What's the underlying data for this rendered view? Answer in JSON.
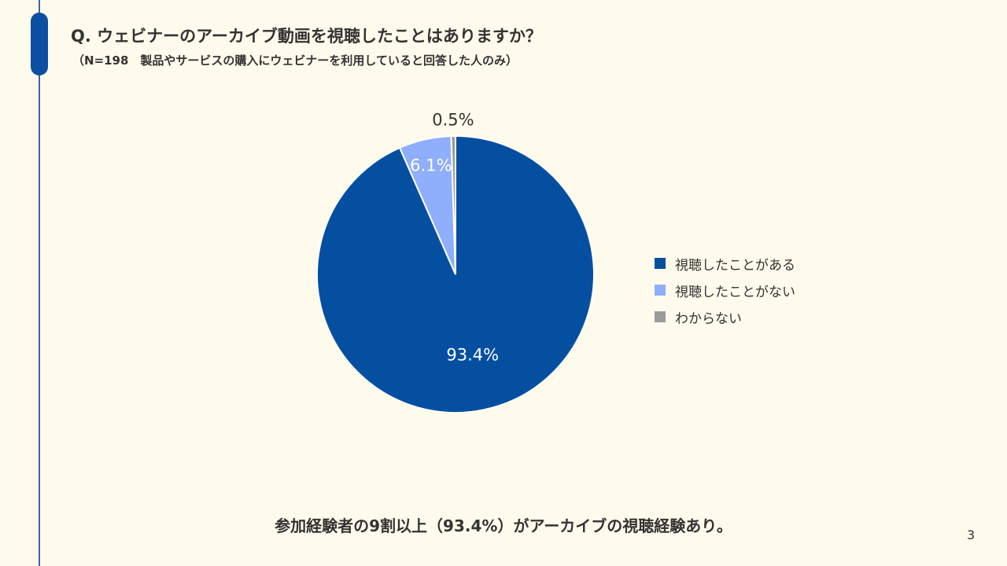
{
  "slide": {
    "title": "Q. ウェビナーのアーカイブ動画を視聴したことはありますか？",
    "subtitle": "（N=198　製品やサービスの購入にウェビナーを利用していると回答した人のみ）",
    "conclusion": "参加経験者の9割以上（93.4%）がアーカイブの視聴経験あり。",
    "page_number": "3"
  },
  "colors": {
    "accent": "#0b4ea2",
    "background": "#fffbec"
  },
  "chart_data": {
    "type": "pie",
    "legend_position": "right",
    "slices": [
      {
        "name": "視聴したことがある",
        "value": 93.4,
        "label": "93.4%",
        "color": "#054fa1"
      },
      {
        "name": "視聴したことがない",
        "value": 6.1,
        "label": "6.1%",
        "color": "#8faefc"
      },
      {
        "name": "わからない",
        "value": 0.5,
        "label": "0.5%",
        "color": "#9a9a9a"
      }
    ]
  }
}
